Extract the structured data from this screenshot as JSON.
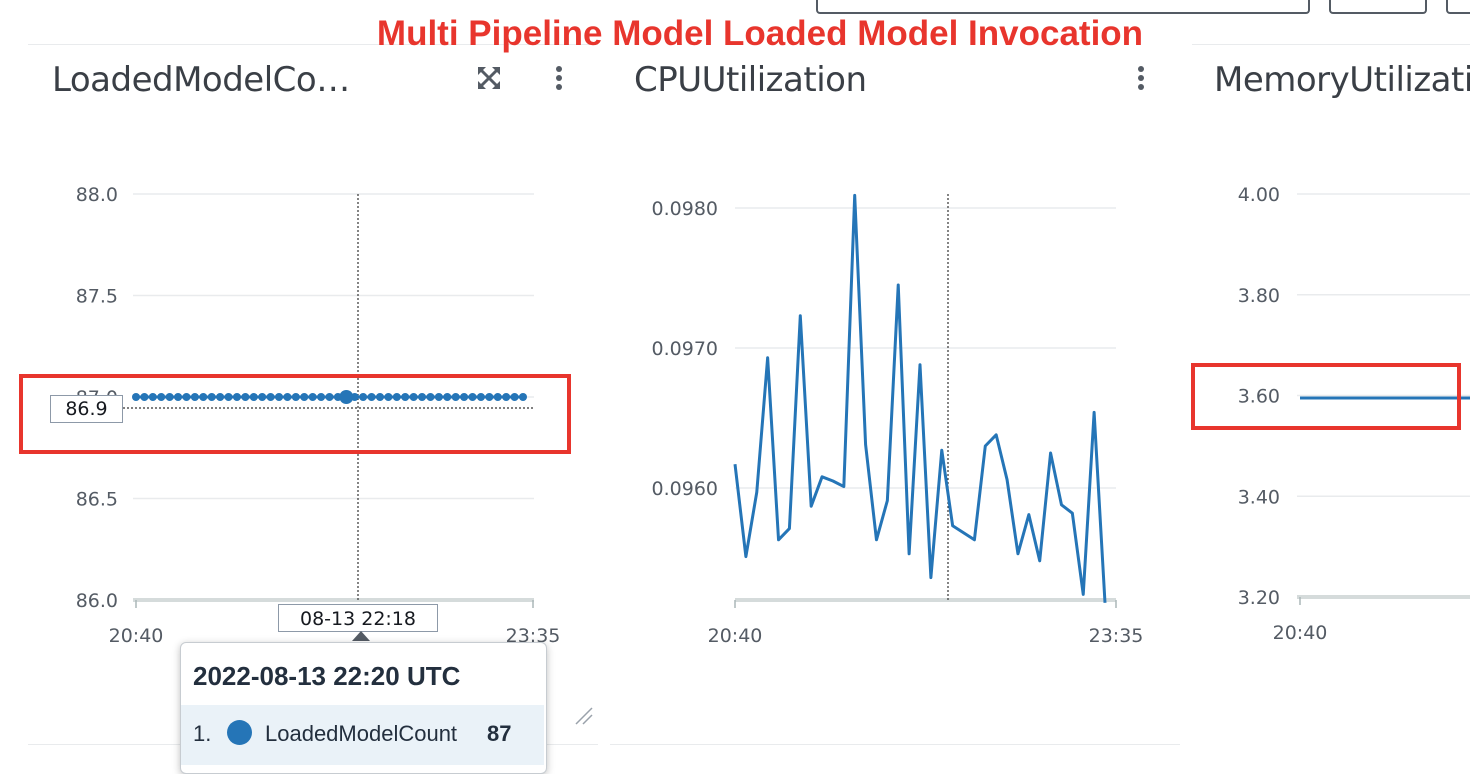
{
  "banner": "Multi Pipeline Model Loaded Model Invocation",
  "colors": {
    "series": "#2575b7",
    "highlight": "#e8352d"
  },
  "widgets": {
    "loaded": {
      "title": "LoadedModelCo…",
      "value_label": "86.9",
      "crosshair_time": "08-13 22:18"
    },
    "cpu": {
      "title": "CPUUtilization"
    },
    "memory": {
      "title": "MemoryUtilizati"
    }
  },
  "tooltip": {
    "title": "2022-08-13 22:20 UTC",
    "index": "1.",
    "metric": "LoadedModelCount",
    "value": "87"
  },
  "chart_data": [
    {
      "type": "line",
      "title": "LoadedModelCo…",
      "x_ticks": [
        "20:40",
        "23:35"
      ],
      "y_ticks": [
        "88.0",
        "87.5",
        "87.0",
        "86.5",
        "86.0"
      ],
      "ylim": [
        86.0,
        88.0
      ],
      "series": [
        {
          "name": "LoadedModelCount",
          "values": [
            87,
            87,
            87,
            87,
            87,
            87,
            87,
            87,
            87,
            87,
            87,
            87,
            87,
            87,
            87,
            87,
            87,
            87,
            87,
            87,
            87,
            87,
            87,
            87,
            87,
            87,
            87,
            87,
            87,
            87,
            87,
            87,
            87,
            87,
            87,
            87,
            87,
            87,
            87,
            87,
            87,
            87,
            87,
            87,
            87,
            87,
            87
          ]
        }
      ],
      "markers": true,
      "highlight_index": 25
    },
    {
      "type": "line",
      "title": "CPUUtilization",
      "x_ticks": [
        "20:40",
        "23:35"
      ],
      "y_ticks": [
        "0.0980",
        "0.0970",
        "0.0960"
      ],
      "ylim": [
        0.0952,
        0.0981
      ],
      "series": [
        {
          "name": "",
          "values": [
            0.09617,
            0.09551,
            0.09597,
            0.09693,
            0.09563,
            0.09571,
            0.09723,
            0.09587,
            0.09608,
            0.09605,
            0.09601,
            0.09809,
            0.09631,
            0.09563,
            0.09591,
            0.09745,
            0.09553,
            0.09688,
            0.09536,
            0.09627,
            0.09573,
            0.09568,
            0.09563,
            0.0963,
            0.09638,
            0.09606,
            0.09553,
            0.09581,
            0.09548,
            0.09625,
            0.09588,
            0.09582,
            0.09524,
            0.09654,
            0.09518
          ]
        }
      ],
      "markers": false
    },
    {
      "type": "line",
      "title": "MemoryUtilizati",
      "x_ticks": [
        "20:40"
      ],
      "y_ticks": [
        "4.00",
        "3.80",
        "3.60",
        "3.40",
        "3.20"
      ],
      "ylim": [
        3.2,
        4.0
      ],
      "series": [
        {
          "name": "",
          "values": [
            3.595,
            3.595
          ]
        }
      ],
      "markers": false
    }
  ]
}
